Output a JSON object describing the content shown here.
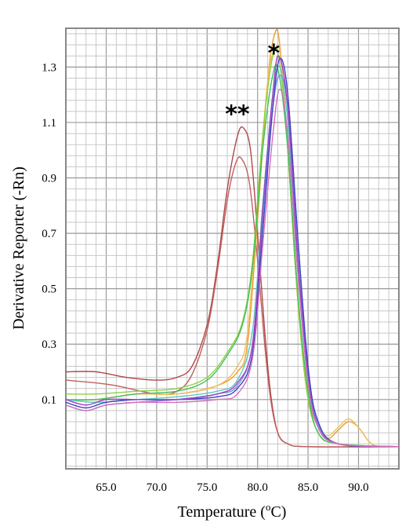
{
  "chart_data": {
    "type": "line",
    "title": "",
    "xlabel": "Temperature (",
    "xlabel_sup": "o",
    "xlabel_unit": "C)",
    "ylabel": "Derivative Reporter (-Rn)",
    "xlim": [
      61.0,
      94.0
    ],
    "ylim": [
      -0.15,
      1.44
    ],
    "x_ticks": [
      "65.0",
      "70.0",
      "75.0",
      "80.0",
      "85.0",
      "90.0"
    ],
    "y_ticks": [
      "0.1",
      "0.3",
      "0.5",
      "0.7",
      "0.9",
      "1.1",
      "1.3"
    ],
    "grid": true,
    "annotations": [
      {
        "text": "*",
        "x": 81.6,
        "y": 1.35
      },
      {
        "text": "**",
        "x": 78.0,
        "y": 1.13
      }
    ],
    "series": [
      {
        "color": "#b04848",
        "points": [
          [
            61,
            0.2
          ],
          [
            64,
            0.2
          ],
          [
            67,
            0.18
          ],
          [
            70,
            0.17
          ],
          [
            72,
            0.18
          ],
          [
            73.5,
            0.22
          ],
          [
            75,
            0.37
          ],
          [
            76,
            0.58
          ],
          [
            77,
            0.86
          ],
          [
            78,
            1.05
          ],
          [
            78.6,
            1.08
          ],
          [
            79.3,
            1.0
          ],
          [
            80,
            0.7
          ],
          [
            80.7,
            0.35
          ],
          [
            81.3,
            0.12
          ],
          [
            82,
            -0.02
          ],
          [
            83,
            -0.06
          ],
          [
            85,
            -0.07
          ],
          [
            94,
            -0.07
          ]
        ]
      },
      {
        "color": "#c06060",
        "points": [
          [
            61,
            0.17
          ],
          [
            64,
            0.16
          ],
          [
            66,
            0.15
          ],
          [
            70,
            0.12
          ],
          [
            72,
            0.13
          ],
          [
            73.5,
            0.19
          ],
          [
            75,
            0.35
          ],
          [
            76,
            0.56
          ],
          [
            77,
            0.82
          ],
          [
            77.8,
            0.95
          ],
          [
            78.4,
            0.97
          ],
          [
            79.2,
            0.88
          ],
          [
            80,
            0.6
          ],
          [
            80.7,
            0.3
          ],
          [
            81.3,
            0.1
          ],
          [
            82,
            -0.02
          ],
          [
            83,
            -0.06
          ],
          [
            85,
            -0.07
          ],
          [
            94,
            -0.07
          ]
        ]
      },
      {
        "color": "#e8a030",
        "points": [
          [
            61,
            0.1
          ],
          [
            64,
            0.1
          ],
          [
            68,
            0.12
          ],
          [
            72,
            0.12
          ],
          [
            76,
            0.15
          ],
          [
            78,
            0.2
          ],
          [
            79,
            0.3
          ],
          [
            80,
            0.75
          ],
          [
            81,
            1.25
          ],
          [
            81.7,
            1.42
          ],
          [
            82.2,
            1.38
          ],
          [
            83,
            1.0
          ],
          [
            84,
            0.45
          ],
          [
            85,
            0.12
          ],
          [
            86,
            0.0
          ],
          [
            87,
            -0.04
          ],
          [
            88,
            -0.01
          ],
          [
            89,
            0.02
          ],
          [
            90,
            0.0
          ],
          [
            91,
            -0.05
          ],
          [
            92,
            -0.07
          ],
          [
            94,
            -0.07
          ]
        ]
      },
      {
        "color": "#f0c060",
        "points": [
          [
            61,
            0.1
          ],
          [
            64,
            0.1
          ],
          [
            68,
            0.12
          ],
          [
            72,
            0.12
          ],
          [
            76,
            0.15
          ],
          [
            78,
            0.22
          ],
          [
            79,
            0.34
          ],
          [
            80,
            0.8
          ],
          [
            81,
            1.25
          ],
          [
            81.8,
            1.37
          ],
          [
            82.3,
            1.33
          ],
          [
            83,
            1.0
          ],
          [
            84,
            0.45
          ],
          [
            85,
            0.12
          ],
          [
            86,
            0.0
          ],
          [
            87,
            -0.03
          ],
          [
            88,
            0.0
          ],
          [
            89,
            0.03
          ],
          [
            90,
            0.0
          ],
          [
            91,
            -0.05
          ],
          [
            92,
            -0.07
          ],
          [
            94,
            -0.07
          ]
        ]
      },
      {
        "color": "#90d040",
        "points": [
          [
            61,
            0.12
          ],
          [
            64,
            0.12
          ],
          [
            68,
            0.13
          ],
          [
            72,
            0.14
          ],
          [
            75,
            0.18
          ],
          [
            77,
            0.27
          ],
          [
            78.5,
            0.38
          ],
          [
            79.5,
            0.6
          ],
          [
            80.5,
            1.05
          ],
          [
            81.4,
            1.32
          ],
          [
            82,
            1.35
          ],
          [
            82.8,
            1.1
          ],
          [
            83.8,
            0.55
          ],
          [
            84.8,
            0.15
          ],
          [
            86,
            -0.02
          ],
          [
            88,
            -0.06
          ],
          [
            94,
            -0.07
          ]
        ]
      },
      {
        "color": "#40c060",
        "points": [
          [
            61,
            0.1
          ],
          [
            64,
            0.1
          ],
          [
            68,
            0.12
          ],
          [
            72,
            0.13
          ],
          [
            75,
            0.17
          ],
          [
            77,
            0.26
          ],
          [
            78.5,
            0.37
          ],
          [
            79.5,
            0.58
          ],
          [
            80.5,
            1.0
          ],
          [
            81.5,
            1.27
          ],
          [
            82.1,
            1.28
          ],
          [
            83,
            1.0
          ],
          [
            84,
            0.48
          ],
          [
            85,
            0.13
          ],
          [
            86,
            -0.02
          ],
          [
            88,
            -0.06
          ],
          [
            94,
            -0.07
          ]
        ]
      },
      {
        "color": "#60c8c0",
        "points": [
          [
            61,
            0.1
          ],
          [
            64,
            0.09
          ],
          [
            68,
            0.1
          ],
          [
            72,
            0.11
          ],
          [
            76,
            0.13
          ],
          [
            78,
            0.17
          ],
          [
            79.5,
            0.35
          ],
          [
            80.5,
            0.8
          ],
          [
            81.5,
            1.2
          ],
          [
            82.2,
            1.3
          ],
          [
            83,
            1.1
          ],
          [
            84,
            0.58
          ],
          [
            85,
            0.18
          ],
          [
            86,
            0.0
          ],
          [
            88,
            -0.06
          ],
          [
            94,
            -0.07
          ]
        ]
      },
      {
        "color": "#7090e0",
        "points": [
          [
            61,
            0.08
          ],
          [
            63,
            0.06
          ],
          [
            65,
            0.08
          ],
          [
            68,
            0.09
          ],
          [
            72,
            0.1
          ],
          [
            76,
            0.12
          ],
          [
            78,
            0.15
          ],
          [
            79.5,
            0.3
          ],
          [
            80.5,
            0.75
          ],
          [
            81.5,
            1.15
          ],
          [
            82.2,
            1.27
          ],
          [
            83,
            1.15
          ],
          [
            84,
            0.62
          ],
          [
            85,
            0.2
          ],
          [
            86,
            0.01
          ],
          [
            88,
            -0.06
          ],
          [
            94,
            -0.07
          ]
        ]
      },
      {
        "color": "#4040c0",
        "points": [
          [
            61,
            0.09
          ],
          [
            63,
            0.07
          ],
          [
            65,
            0.09
          ],
          [
            68,
            0.1
          ],
          [
            72,
            0.1
          ],
          [
            76,
            0.11
          ],
          [
            78,
            0.14
          ],
          [
            79.5,
            0.27
          ],
          [
            80.5,
            0.7
          ],
          [
            81.5,
            1.15
          ],
          [
            82.2,
            1.33
          ],
          [
            83,
            1.2
          ],
          [
            84,
            0.68
          ],
          [
            85,
            0.22
          ],
          [
            86,
            0.02
          ],
          [
            88,
            -0.06
          ],
          [
            94,
            -0.07
          ]
        ]
      },
      {
        "color": "#a040c0",
        "points": [
          [
            61,
            0.1
          ],
          [
            63,
            0.08
          ],
          [
            65,
            0.1
          ],
          [
            68,
            0.1
          ],
          [
            72,
            0.1
          ],
          [
            76,
            0.12
          ],
          [
            78,
            0.16
          ],
          [
            79.5,
            0.3
          ],
          [
            80.5,
            0.78
          ],
          [
            81.5,
            1.2
          ],
          [
            82.1,
            1.34
          ],
          [
            83,
            1.15
          ],
          [
            84,
            0.6
          ],
          [
            85,
            0.18
          ],
          [
            86,
            0.0
          ],
          [
            88,
            -0.06
          ],
          [
            94,
            -0.07
          ]
        ]
      },
      {
        "color": "#d070c0",
        "points": [
          [
            61,
            0.08
          ],
          [
            63,
            0.06
          ],
          [
            65,
            0.08
          ],
          [
            68,
            0.09
          ],
          [
            72,
            0.09
          ],
          [
            76,
            0.1
          ],
          [
            78,
            0.12
          ],
          [
            79.5,
            0.25
          ],
          [
            80.5,
            0.65
          ],
          [
            81.5,
            1.05
          ],
          [
            82.2,
            1.22
          ],
          [
            83,
            1.05
          ],
          [
            84,
            0.55
          ],
          [
            85,
            0.16
          ],
          [
            86,
            0.0
          ],
          [
            88,
            -0.06
          ],
          [
            94,
            -0.07
          ]
        ]
      }
    ]
  }
}
